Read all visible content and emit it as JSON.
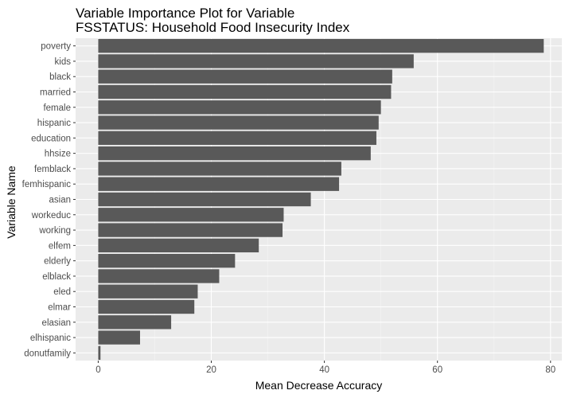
{
  "chart_data": {
    "type": "bar",
    "orientation": "horizontal",
    "title": "Variable Importance Plot for Variable",
    "subtitle": "FSSTATUS: Household Food Insecurity Index",
    "xlabel": "Mean Decrease Accuracy",
    "ylabel": "Variable Name",
    "xlim": [
      -4,
      82
    ],
    "xticks": [
      0,
      20,
      40,
      60,
      80
    ],
    "grid": true,
    "legend": "none",
    "categories": [
      "poverty",
      "kids",
      "black",
      "married",
      "female",
      "hispanic",
      "education",
      "hhsize",
      "femblack",
      "femhispanic",
      "asian",
      "workeduc",
      "working",
      "elfem",
      "elderly",
      "elblack",
      "eled",
      "elmar",
      "elasian",
      "elhispanic",
      "donutfamily"
    ],
    "values": [
      78.8,
      55.8,
      52.0,
      51.8,
      50.0,
      49.6,
      49.2,
      48.2,
      43.0,
      42.6,
      37.6,
      32.8,
      32.6,
      28.4,
      24.2,
      21.4,
      17.6,
      17.0,
      12.9,
      7.4,
      0.4
    ],
    "colors": {
      "bar": "#595959",
      "panel": "#ebebeb",
      "grid_major": "#ffffff",
      "grid_minor": "#f5f5f5",
      "tick_text": "#4d4d4d"
    }
  }
}
